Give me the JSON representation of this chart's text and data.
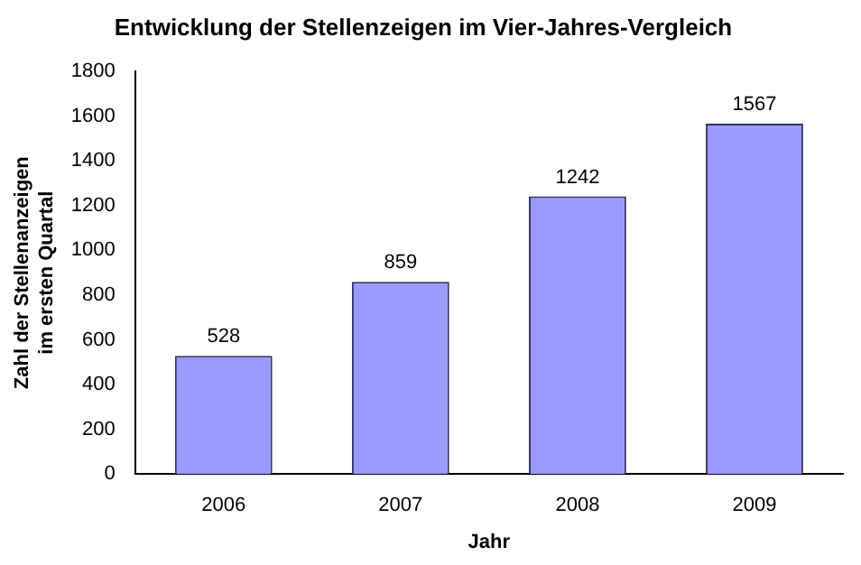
{
  "chart_data": {
    "type": "bar",
    "title": "Entwicklung der Stellenzeigen im Vier-Jahres-Vergleich",
    "xlabel": "Jahr",
    "ylabel": "Zahl der Stellenanzeigen im ersten Quartal",
    "categories": [
      "2006",
      "2007",
      "2008",
      "2009"
    ],
    "values": [
      528,
      859,
      1242,
      1567
    ],
    "color": "#9999ff",
    "ylim": [
      0,
      1800
    ],
    "yticks": [
      0,
      200,
      400,
      600,
      800,
      1000,
      1200,
      1400,
      1600,
      1800
    ],
    "grid": false,
    "data_labels": true
  }
}
